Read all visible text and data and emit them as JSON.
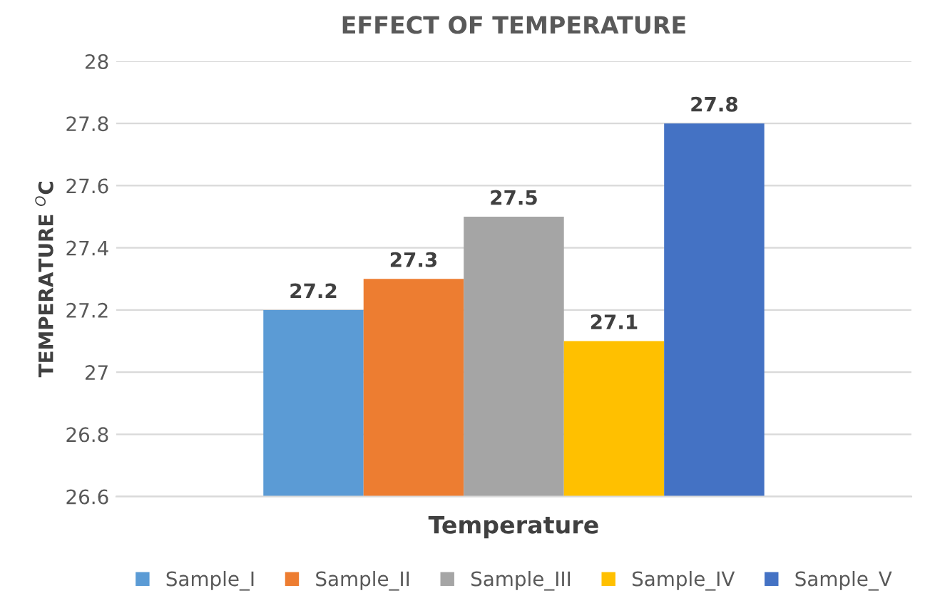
{
  "chart_data": {
    "type": "bar",
    "title": "EFFECT OF TEMPERATURE",
    "xlabel": "Temperature",
    "ylabel": "TEMPERATURE $^{O}$C",
    "categories": [
      null
    ],
    "series": [
      {
        "name": "Sample_I",
        "color": "#5b9bd5",
        "values": [
          27.2
        ]
      },
      {
        "name": "Sample_II",
        "color": "#ed7d31",
        "values": [
          27.3
        ]
      },
      {
        "name": "Sample_III",
        "color": "#a5a5a5",
        "values": [
          27.5
        ]
      },
      {
        "name": "Sample_IV",
        "color": "#ffc000",
        "values": [
          27.1
        ]
      },
      {
        "name": "Sample_V",
        "color": "#4472c4",
        "values": [
          27.8
        ]
      }
    ],
    "ylim": [
      26.6,
      28
    ],
    "yticks": [
      26.6,
      26.8,
      27,
      27.2,
      27.4,
      27.6,
      27.8,
      28
    ],
    "grid": "y",
    "legend": "bottom",
    "data_labels": true
  }
}
